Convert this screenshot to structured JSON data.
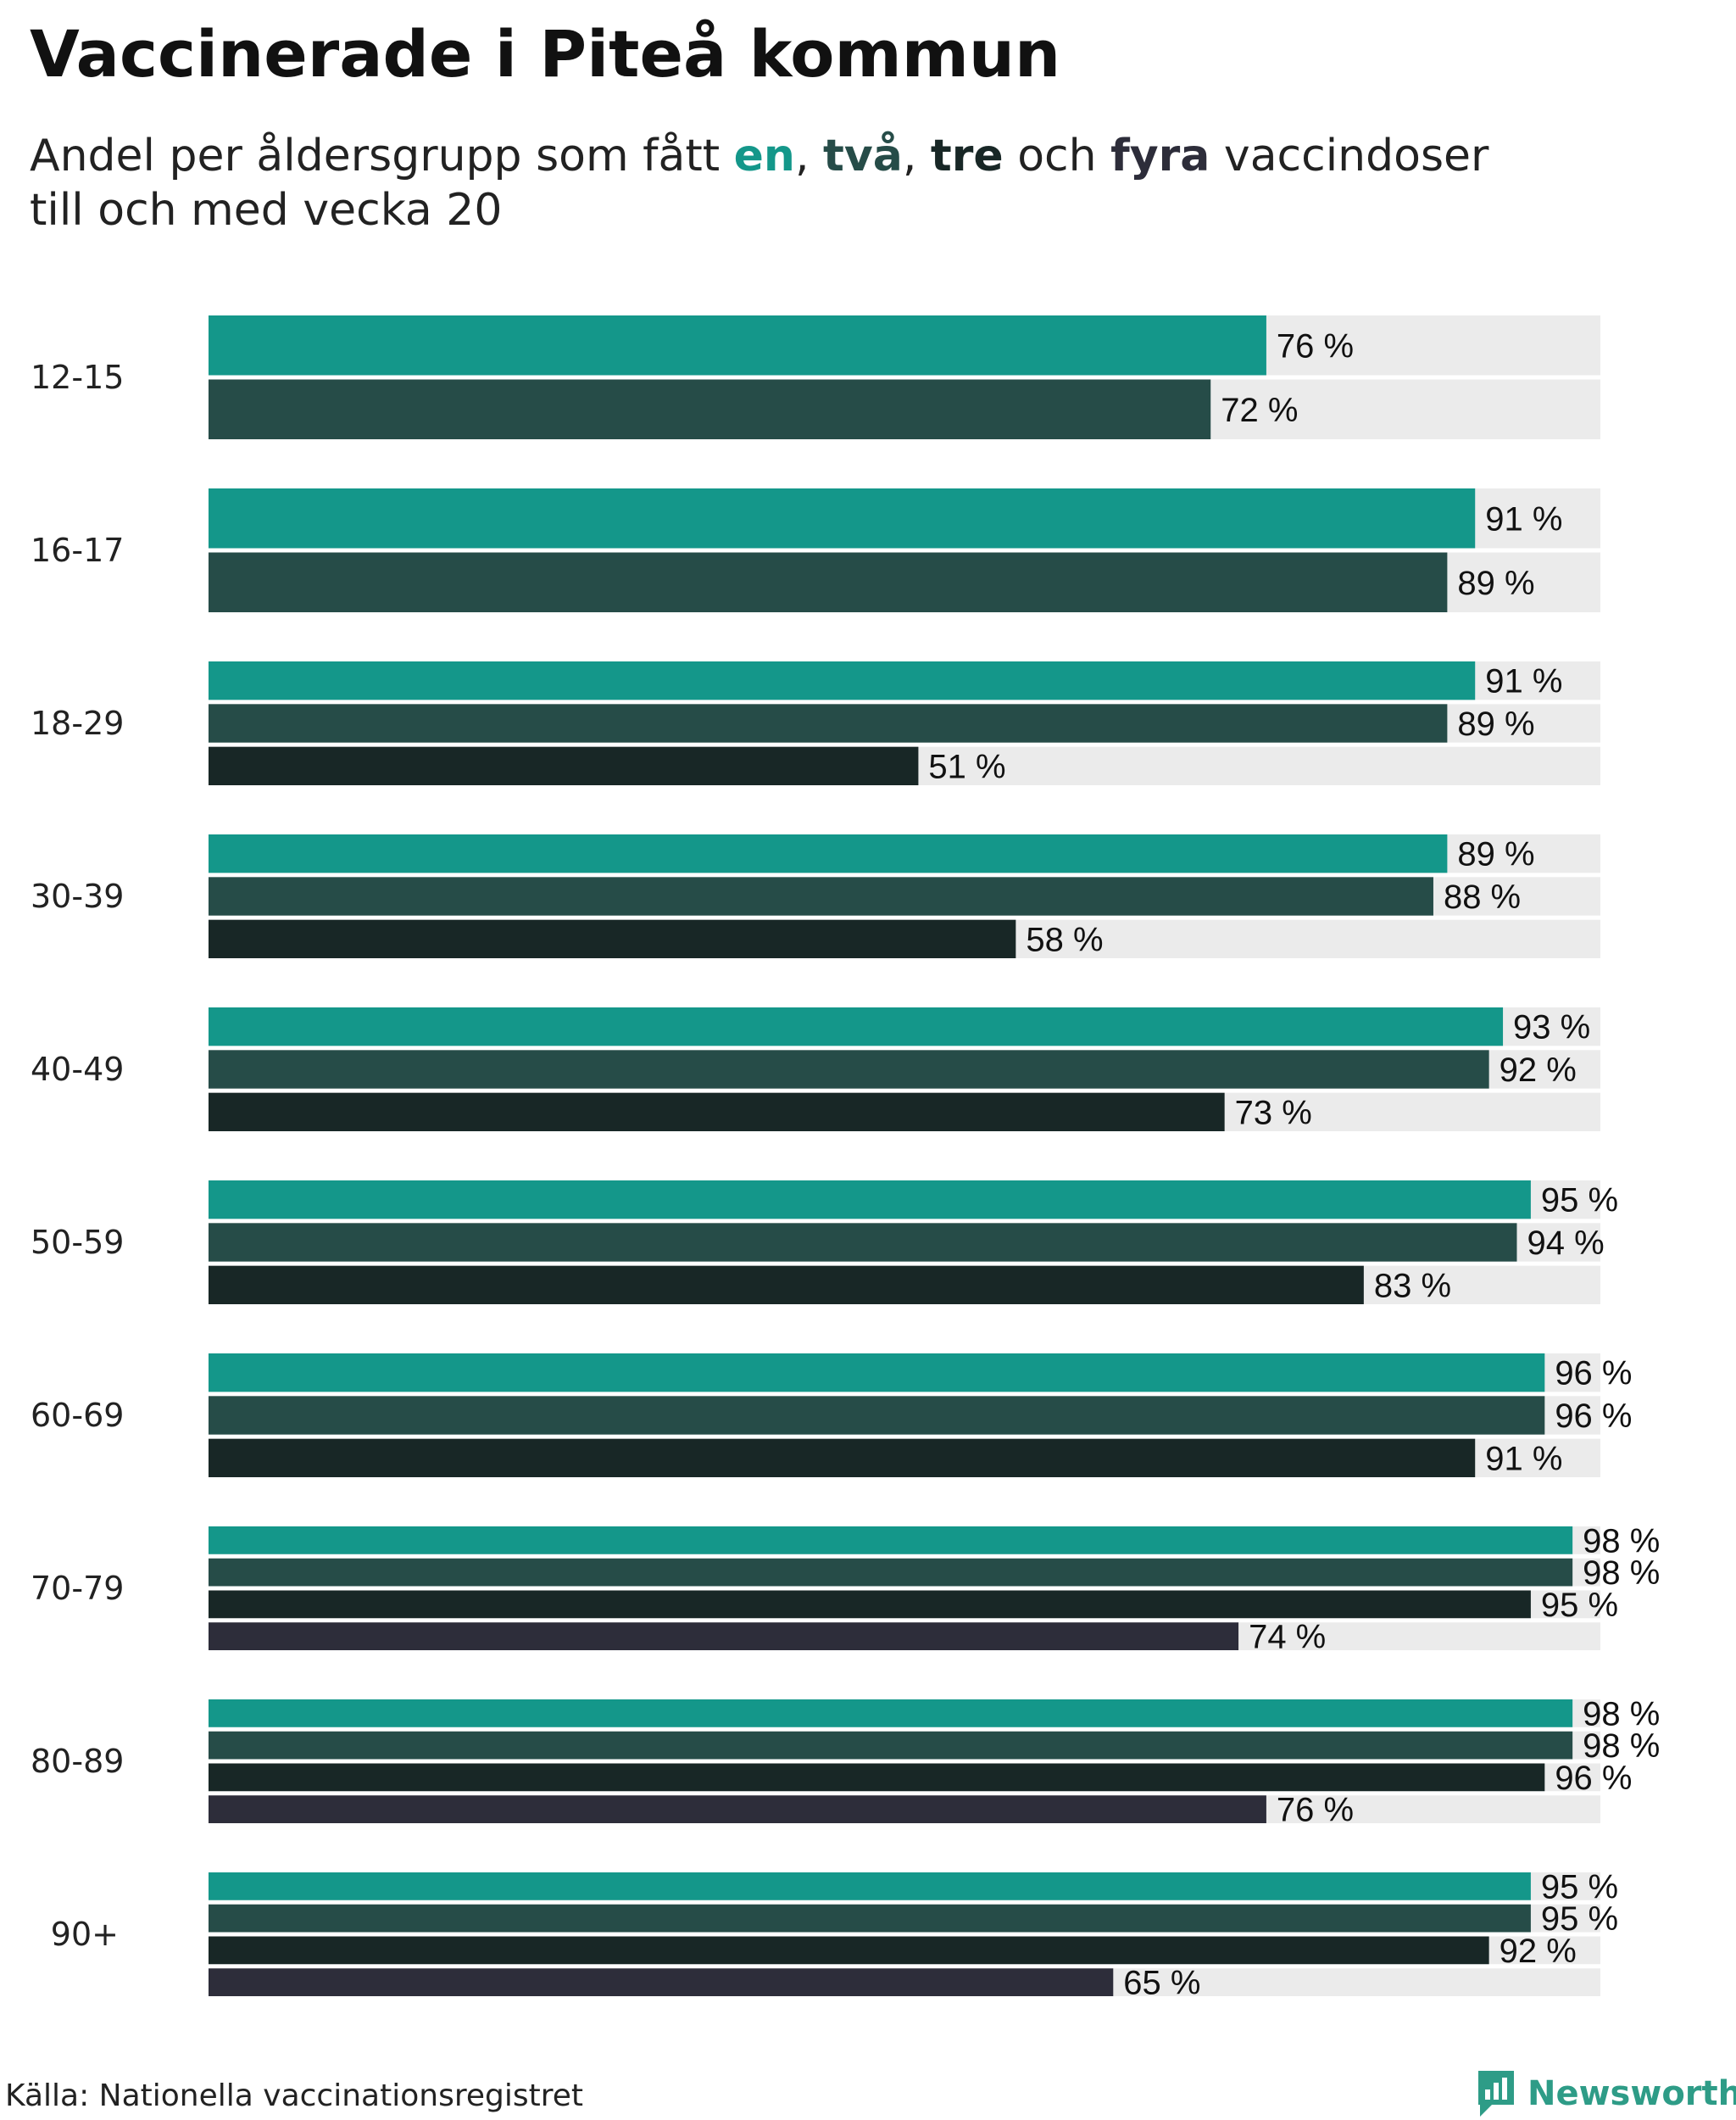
{
  "title": "Vaccinerade i Piteå kommun",
  "subtitle": {
    "prefix": "Andel per åldersgrupp som fått ",
    "dose1": "en",
    "sep1": ", ",
    "dose2": "två",
    "sep2": ", ",
    "dose3": "tre",
    "conj": " och ",
    "dose4": "fyra",
    "suffix": " vaccindoser",
    "line2": "till och med vecka 20"
  },
  "colors": {
    "dose1": "#14978a",
    "dose2": "#264c48",
    "dose3": "#182726",
    "dose4": "#2d2d3a",
    "track": "#ebebeb",
    "brand": "#2e9c87"
  },
  "chart_data": {
    "type": "bar",
    "orientation": "horizontal",
    "categories": [
      "12-15",
      "16-17",
      "18-29",
      "30-39",
      "40-49",
      "50-59",
      "60-69",
      "70-79",
      "80-89",
      "90+"
    ],
    "value_suffix": " %",
    "xlim": [
      0,
      100
    ],
    "series": [
      {
        "key": "dose1",
        "values": [
          76,
          91,
          91,
          89,
          93,
          95,
          96,
          98,
          98,
          95
        ]
      },
      {
        "key": "dose2",
        "values": [
          72,
          89,
          89,
          88,
          92,
          94,
          96,
          98,
          98,
          95
        ]
      },
      {
        "key": "dose3",
        "values": [
          null,
          null,
          51,
          58,
          73,
          83,
          91,
          95,
          96,
          92
        ]
      },
      {
        "key": "dose4",
        "values": [
          null,
          null,
          null,
          null,
          null,
          null,
          null,
          74,
          76,
          65
        ]
      }
    ]
  },
  "source": "Källa: Nationella vaccinationsregistret",
  "brand": {
    "name": "Newsworthy",
    "icon": "bar-chart-logo-icon"
  }
}
